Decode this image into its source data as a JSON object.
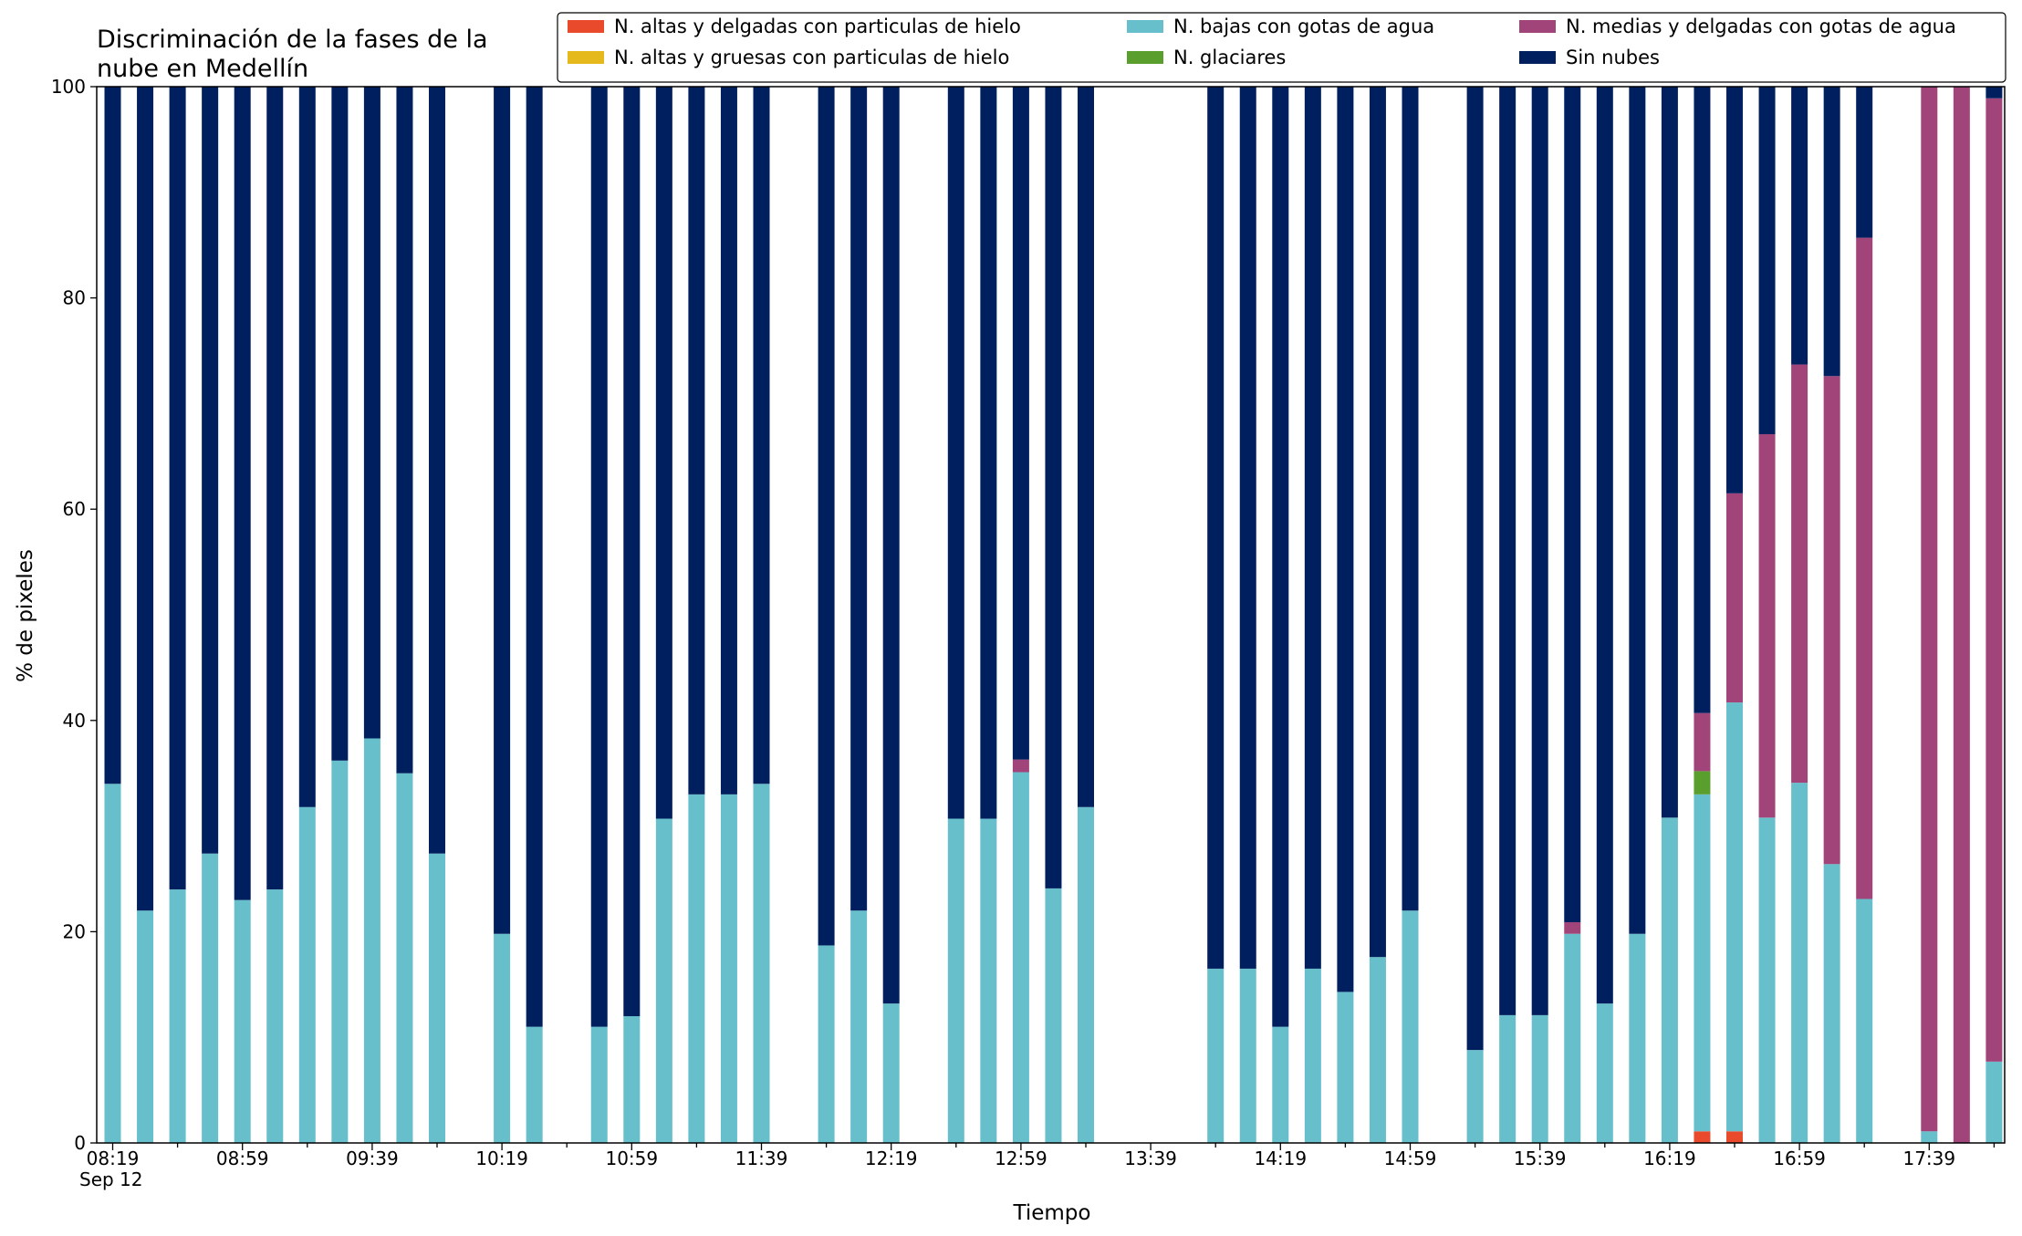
{
  "chart_data": {
    "type": "bar",
    "stacked": true,
    "title_lines": [
      "Discriminación de la fases de la",
      "nube en Medellín"
    ],
    "xlabel": "Tiempo",
    "ylabel": "% de pixeles",
    "ylim": [
      0,
      100
    ],
    "yticks": [
      "0",
      "20",
      "40",
      "60",
      "80",
      "100"
    ],
    "xticks": [
      "08:19",
      "08:59",
      "09:39",
      "10:19",
      "10:59",
      "11:39",
      "12:19",
      "12:59",
      "13:39",
      "14:19",
      "14:59",
      "15:39",
      "16:19",
      "16:59",
      "17:39"
    ],
    "x_sublabel": "Sep 12",
    "legend_position": "top-right",
    "series": [
      {
        "name": "N. altas y delgadas con particulas de hielo",
        "color": "#ea4a2c"
      },
      {
        "name": "N. altas y gruesas con particulas de hielo",
        "color": "#e5b91c"
      },
      {
        "name": "N. bajas con gotas de agua",
        "color": "#66bfcb"
      },
      {
        "name": "N. glaciares",
        "color": "#5a9e2e"
      },
      {
        "name": "N. medias y delgadas con gotas de agua",
        "color": "#a1447a"
      },
      {
        "name": "Sin nubes",
        "color": "#001f5e"
      }
    ],
    "bars": [
      {
        "time": "08:19",
        "values": [
          0,
          0,
          34,
          0,
          0,
          66
        ]
      },
      {
        "time": "08:29",
        "values": [
          0,
          0,
          22,
          0,
          0,
          78
        ]
      },
      {
        "time": "08:39",
        "values": [
          0,
          0,
          24,
          0,
          0,
          76
        ]
      },
      {
        "time": "08:49",
        "values": [
          0,
          0,
          27.4,
          0,
          0,
          72.6
        ]
      },
      {
        "time": "08:59",
        "values": [
          0,
          0,
          23,
          0,
          0,
          77
        ]
      },
      {
        "time": "09:09",
        "values": [
          0,
          0,
          24,
          0,
          0,
          76
        ]
      },
      {
        "time": "09:19",
        "values": [
          0,
          0,
          31.8,
          0,
          0,
          68.2
        ]
      },
      {
        "time": "09:29",
        "values": [
          0,
          0,
          36.2,
          0,
          0,
          63.8
        ]
      },
      {
        "time": "09:39",
        "values": [
          0,
          0,
          38.3,
          0,
          0,
          61.7
        ]
      },
      {
        "time": "09:49",
        "values": [
          0,
          0,
          35,
          0,
          0,
          65
        ]
      },
      {
        "time": "09:59",
        "values": [
          0,
          0,
          27.4,
          0,
          0,
          72.6
        ]
      },
      {
        "time": "10:19",
        "values": [
          0,
          0,
          19.8,
          0,
          0,
          80.2
        ]
      },
      {
        "time": "10:29",
        "values": [
          0,
          0,
          11,
          0,
          0,
          89
        ]
      },
      {
        "time": "10:49",
        "values": [
          0,
          0,
          11,
          0,
          0,
          89
        ]
      },
      {
        "time": "10:59",
        "values": [
          0,
          0,
          12,
          0,
          0,
          88
        ]
      },
      {
        "time": "11:09",
        "values": [
          0,
          0,
          30.7,
          0,
          0,
          69.3
        ]
      },
      {
        "time": "11:19",
        "values": [
          0,
          0,
          33,
          0,
          0,
          67
        ]
      },
      {
        "time": "11:29",
        "values": [
          0,
          0,
          33,
          0,
          0,
          67
        ]
      },
      {
        "time": "11:39",
        "values": [
          0,
          0,
          34,
          0,
          0,
          66
        ]
      },
      {
        "time": "11:59",
        "values": [
          0,
          0,
          18.7,
          0,
          0,
          81.3
        ]
      },
      {
        "time": "12:09",
        "values": [
          0,
          0,
          22,
          0,
          0,
          78
        ]
      },
      {
        "time": "12:19",
        "values": [
          0,
          0,
          13.2,
          0,
          0,
          86.8
        ]
      },
      {
        "time": "12:39",
        "values": [
          0,
          0,
          30.7,
          0,
          0,
          69.3
        ]
      },
      {
        "time": "12:49",
        "values": [
          0,
          0,
          30.7,
          0,
          0,
          69.3
        ]
      },
      {
        "time": "12:59",
        "values": [
          0,
          0,
          35.1,
          0,
          1.2,
          63.7
        ]
      },
      {
        "time": "13:09",
        "values": [
          0,
          0,
          24.1,
          0,
          0,
          75.9
        ]
      },
      {
        "time": "13:19",
        "values": [
          0,
          0,
          31.8,
          0,
          0,
          68.2
        ]
      },
      {
        "time": "13:59",
        "values": [
          0,
          0,
          16.5,
          0,
          0,
          83.5
        ]
      },
      {
        "time": "14:09",
        "values": [
          0,
          0,
          16.5,
          0,
          0,
          83.5
        ]
      },
      {
        "time": "14:19",
        "values": [
          0,
          0,
          11,
          0,
          0,
          89
        ]
      },
      {
        "time": "14:29",
        "values": [
          0,
          0,
          16.5,
          0,
          0,
          83.5
        ]
      },
      {
        "time": "14:39",
        "values": [
          0,
          0,
          14.3,
          0,
          0,
          85.7
        ]
      },
      {
        "time": "14:49",
        "values": [
          0,
          0,
          17.6,
          0,
          0,
          82.4
        ]
      },
      {
        "time": "14:59",
        "values": [
          0,
          0,
          22,
          0,
          0,
          78
        ]
      },
      {
        "time": "15:19",
        "values": [
          0,
          0,
          8.8,
          0,
          0,
          91.2
        ]
      },
      {
        "time": "15:29",
        "values": [
          0,
          0,
          12.1,
          0,
          0,
          87.9
        ]
      },
      {
        "time": "15:39",
        "values": [
          0,
          0,
          12.1,
          0,
          0,
          87.9
        ]
      },
      {
        "time": "15:49",
        "values": [
          0,
          0,
          19.8,
          0,
          1.1,
          79.1
        ]
      },
      {
        "time": "15:59",
        "values": [
          0,
          0,
          13.2,
          0,
          0,
          86.8
        ]
      },
      {
        "time": "16:09",
        "values": [
          0,
          0,
          19.8,
          0,
          0,
          80.2
        ]
      },
      {
        "time": "16:19",
        "values": [
          0,
          0,
          30.8,
          0,
          0,
          69.2
        ]
      },
      {
        "time": "16:29",
        "values": [
          1.1,
          0,
          31.9,
          2.2,
          5.5,
          59.3
        ]
      },
      {
        "time": "16:39",
        "values": [
          1.1,
          0,
          40.6,
          0,
          19.8,
          38.5
        ]
      },
      {
        "time": "16:49",
        "values": [
          0,
          0,
          30.8,
          0,
          36.3,
          32.9
        ]
      },
      {
        "time": "16:59",
        "values": [
          0,
          0,
          34.1,
          0,
          39.6,
          26.3
        ]
      },
      {
        "time": "17:09",
        "values": [
          0,
          0,
          26.4,
          0,
          46.2,
          27.4
        ]
      },
      {
        "time": "17:19",
        "values": [
          0,
          0,
          23.1,
          0,
          62.6,
          14.3
        ]
      },
      {
        "time": "17:39",
        "values": [
          0,
          0,
          1.1,
          0,
          98.9,
          0
        ]
      },
      {
        "time": "17:49",
        "values": [
          0,
          0,
          0,
          0,
          100,
          0
        ]
      },
      {
        "time": "17:59",
        "values": [
          0,
          0,
          7.7,
          0,
          91.2,
          1.1
        ]
      }
    ]
  }
}
